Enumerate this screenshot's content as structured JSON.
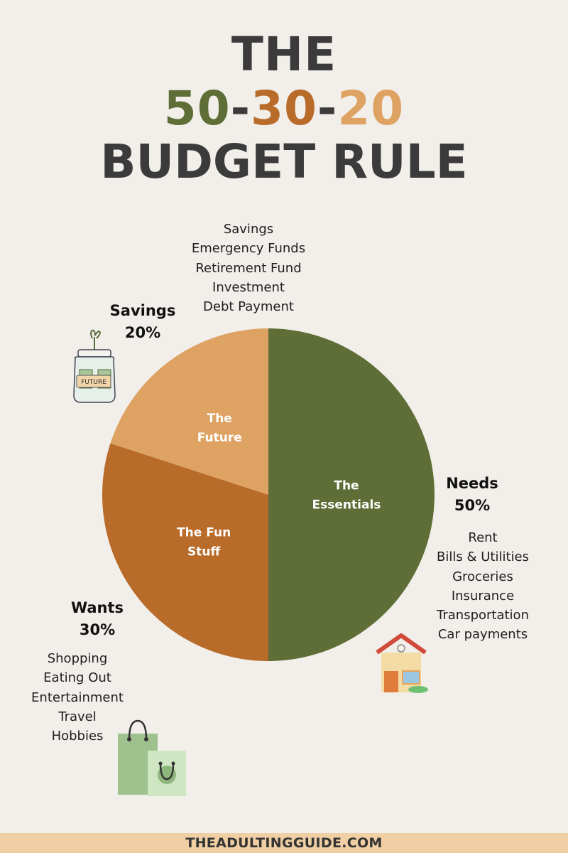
{
  "header": {
    "line1": "THE",
    "line2": {
      "n50": "50",
      "sep1": "-",
      "n30": "30",
      "sep2": "-",
      "n20": "20"
    },
    "line3": "BUDGET RULE"
  },
  "colors": {
    "needs": "#5e6e36",
    "wants": "#b96b2a",
    "savings": "#dea363",
    "background": "#f2eeea",
    "footer_bg": "#efcfa3"
  },
  "chart_data": {
    "type": "pie",
    "slices": [
      {
        "label": "Needs",
        "value": 50,
        "percent": "50%",
        "inner_label": [
          "The",
          "Essentials"
        ],
        "color": "#5e6e36",
        "items": [
          "Rent",
          "Bills & Utilities",
          "Groceries",
          "Insurance",
          "Transportation",
          "Car payments"
        ]
      },
      {
        "label": "Wants",
        "value": 30,
        "percent": "30%",
        "inner_label": [
          "The Fun",
          "Stuff"
        ],
        "color": "#b96b2a",
        "items": [
          "Shopping",
          "Eating Out",
          "Entertainment",
          "Travel",
          "Hobbies"
        ]
      },
      {
        "label": "Savings",
        "value": 20,
        "percent": "20%",
        "inner_label": [
          "The",
          "Future"
        ],
        "color": "#dea363",
        "items": [
          "Savings",
          "Emergency Funds",
          "Retirement Fund",
          "Investment",
          "Debt Payment"
        ]
      }
    ]
  },
  "icons": {
    "savings": "money-jar-icon",
    "needs": "house-icon",
    "wants": "shopping-bags-icon"
  },
  "jar_label": "FUTURE",
  "footer": "THEADULTINGGUIDE.COM"
}
